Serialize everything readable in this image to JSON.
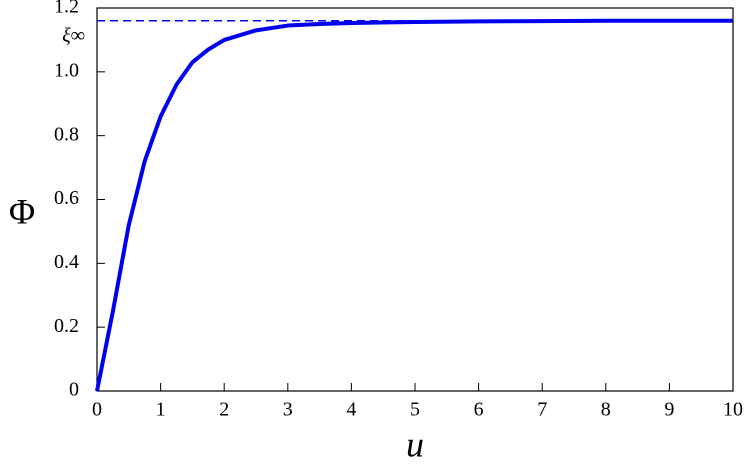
{
  "chart_data": {
    "type": "line",
    "x_label": "u",
    "y_label": "Φ",
    "x": [
      0,
      0.25,
      0.5,
      0.75,
      1,
      1.25,
      1.5,
      1.75,
      2,
      2.5,
      3,
      3.5,
      4,
      5,
      6,
      7,
      8,
      9,
      10
    ],
    "series": [
      {
        "color": "#0000ee",
        "values": [
          0,
          0.25,
          0.52,
          0.72,
          0.86,
          0.96,
          1.03,
          1.07,
          1.1,
          1.13,
          1.145,
          1.15,
          1.153,
          1.156,
          1.158,
          1.159,
          1.16,
          1.16,
          1.16
        ]
      }
    ],
    "reference_line": {
      "value": 1.16,
      "label": "ξ∞",
      "color": "#0000ee",
      "dashed": true
    },
    "xlim": [
      0,
      10
    ],
    "ylim": [
      0,
      1.2
    ],
    "xticks": [
      0,
      1,
      2,
      3,
      4,
      5,
      6,
      7,
      8,
      9,
      10
    ],
    "yticks": [
      0,
      0.2,
      0.4,
      0.6,
      0.8,
      {
        "value": 1,
        "label": "1.0"
      },
      1.2
    ],
    "grid": false
  }
}
